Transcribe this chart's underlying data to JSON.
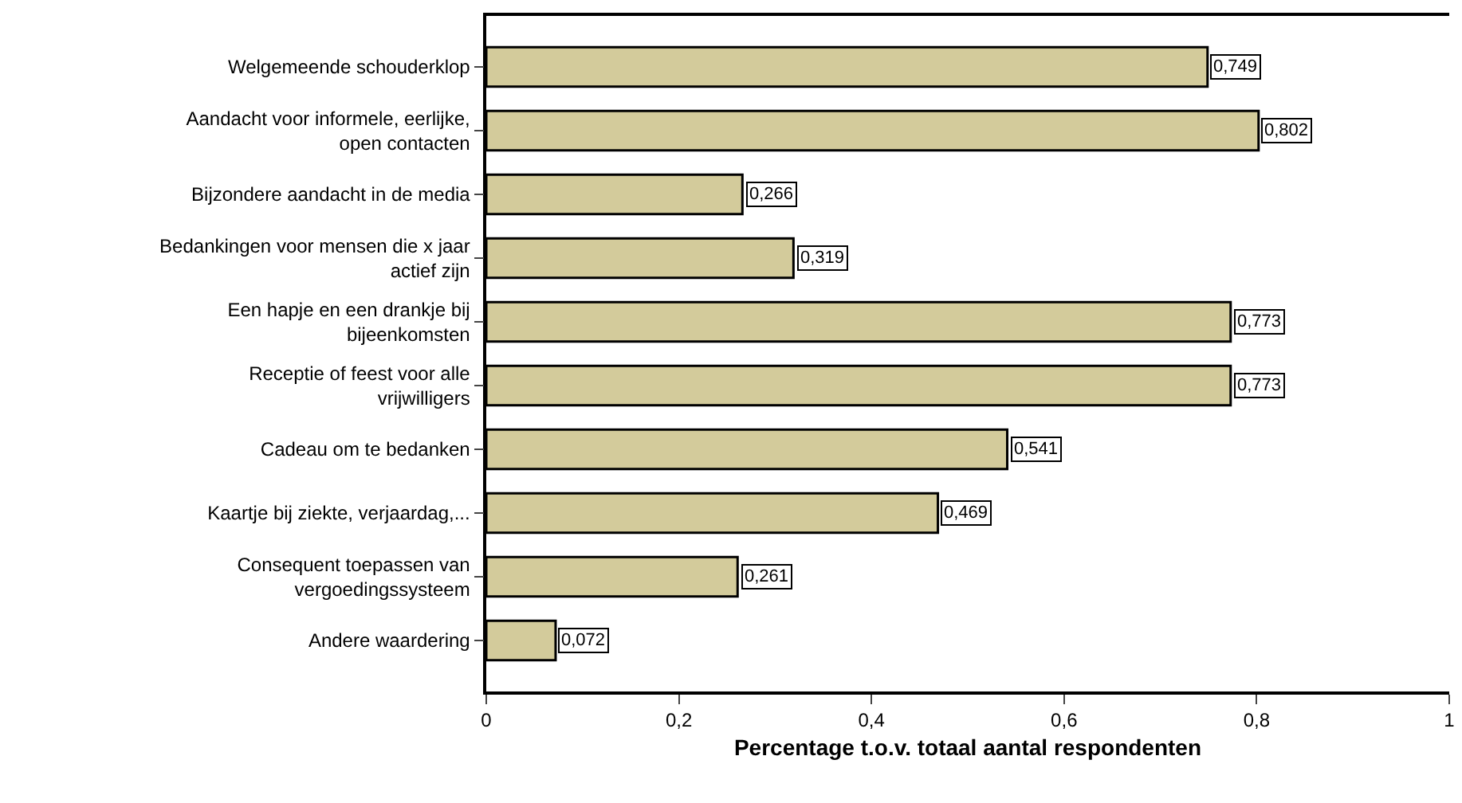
{
  "chart_data": {
    "type": "bar",
    "orientation": "horizontal",
    "xlabel": "Percentage t.o.v. totaal aantal respondenten",
    "categories": [
      "Welgemeende schouderklop",
      "Aandacht voor informele, eerlijke, open contacten",
      "Bijzondere aandacht in de media",
      "Bedankingen voor mensen die x jaar actief zijn",
      "Een hapje en een drankje bij bijeenkomsten",
      "Receptie of feest voor alle vrijwilligers",
      "Cadeau om te bedanken",
      "Kaartje bij ziekte, verjaardag,...",
      "Consequent toepassen van vergoedingssysteem",
      "Andere waardering"
    ],
    "values": [
      0.749,
      0.802,
      0.266,
      0.319,
      0.773,
      0.773,
      0.541,
      0.469,
      0.261,
      0.072
    ],
    "value_labels": [
      "0,749",
      "0,802",
      "0,266",
      "0,319",
      "0,773",
      "0,773",
      "0,541",
      "0,469",
      "0,261",
      "0,072"
    ],
    "color": "#d3cb9b",
    "xlim": [
      0,
      1
    ],
    "xticks": [
      0,
      {
        "value": 0.2,
        "label": "0,2"
      },
      {
        "value": 0.4,
        "label": "0,4"
      },
      {
        "value": 0.6,
        "label": "0,6"
      },
      {
        "value": 0.8,
        "label": "0,8"
      },
      1
    ],
    "legend": false
  }
}
